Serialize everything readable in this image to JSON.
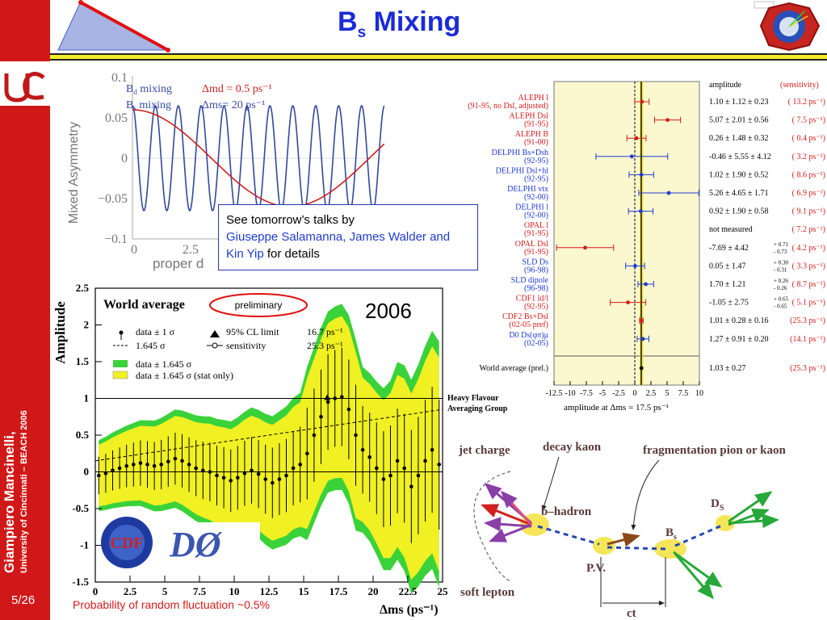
{
  "slide": {
    "title_main": "B",
    "title_sub": "s",
    "title_rest": " Mixing",
    "page_number": "5/26",
    "author": "Giampiero Mancinelli,",
    "affiliation": "University of Cincinnati – BEACH 2006",
    "colors": {
      "sidebar": "#d01818",
      "title": "#1a2bd6",
      "rule": "#f2ea2a"
    }
  },
  "talks_box": {
    "line1": "See tomorrow’s talks by",
    "names": "Giuseppe Salamanna, James Walder and Kin Yip",
    "tail": " for details"
  },
  "footnote": "Probability of random fluctuation ~0.5%",
  "logos": {
    "left": "CDF",
    "right": "DØ"
  },
  "chart_data": [
    {
      "type": "line",
      "ylabel": "Mixed Asymmetry",
      "xlabel": "proper d",
      "x_ticks": [
        "0",
        "2.5"
      ],
      "y_ticks": [
        "0.1",
        "0.05",
        "0",
        "−0.05",
        "−0.1"
      ],
      "ylim": [
        -0.1,
        0.1
      ],
      "series": [
        {
          "name": "Bd mixing",
          "param": "Δmd = 0.5 ps⁻¹",
          "color": "#d02020",
          "freq": 0.5,
          "amp": 0.06
        },
        {
          "name": "Bs mixing",
          "param": "Δms= 20 ps⁻¹",
          "color": "#33489c",
          "freq": 20,
          "amp": 0.065
        }
      ]
    },
    {
      "type": "scatter",
      "title": "World average",
      "badge": "preliminary",
      "year": "2006",
      "ylabel": "Amplitude",
      "xlabel": "Δms (ps⁻¹)",
      "xlim": [
        0,
        25
      ],
      "ylim": [
        -1.5,
        2.5
      ],
      "x_ticks": [
        "0",
        "2.5",
        "5",
        "7.5",
        "10",
        "12.5",
        "15",
        "17.5",
        "20",
        "22.5",
        "25"
      ],
      "y_ticks": [
        "2.5",
        "2",
        "1.5",
        "1",
        "0.5",
        "0",
        "-0.5",
        "-1",
        "-1.5"
      ],
      "legend": [
        "data ± 1 σ",
        "1.645 σ",
        "data ± 1.645 σ",
        "data ± 1.645 σ (stat only)",
        "95% CL limit",
        "16.7 ps⁻¹",
        "sensitivity",
        "25.3 ps⁻¹"
      ],
      "credit": [
        "Heavy Flavour",
        "Averaging Group"
      ],
      "points": [
        [
          0.25,
          -0.05
        ],
        [
          0.75,
          -0.02
        ],
        [
          1.25,
          0.02
        ],
        [
          1.75,
          0.05
        ],
        [
          2.25,
          0.08
        ],
        [
          2.75,
          0.1
        ],
        [
          3.25,
          0.12
        ],
        [
          3.75,
          0.1
        ],
        [
          4.25,
          0.08
        ],
        [
          4.75,
          0.1
        ],
        [
          5.25,
          0.14
        ],
        [
          5.75,
          0.18
        ],
        [
          6.25,
          0.15
        ],
        [
          6.75,
          0.1
        ],
        [
          7.25,
          0.05
        ],
        [
          7.75,
          0.02
        ],
        [
          8.25,
          0.0
        ],
        [
          8.75,
          -0.05
        ],
        [
          9.25,
          -0.08
        ],
        [
          9.75,
          -0.12
        ],
        [
          10.25,
          -0.08
        ],
        [
          10.75,
          -0.02
        ],
        [
          11.25,
          0.02
        ],
        [
          11.75,
          -0.03
        ],
        [
          12.25,
          -0.1
        ],
        [
          12.75,
          -0.15
        ],
        [
          13.25,
          -0.1
        ],
        [
          13.75,
          -0.05
        ],
        [
          14.25,
          0.05
        ],
        [
          14.75,
          0.1
        ],
        [
          15.25,
          0.25
        ],
        [
          15.75,
          0.5
        ],
        [
          16.25,
          0.75
        ],
        [
          16.75,
          0.95
        ],
        [
          17.25,
          1.0
        ],
        [
          17.75,
          1.02
        ],
        [
          18.25,
          0.85
        ],
        [
          18.75,
          0.5
        ],
        [
          19.25,
          0.3
        ],
        [
          19.75,
          0.2
        ],
        [
          20.25,
          0.05
        ],
        [
          20.75,
          -0.1
        ],
        [
          21.25,
          -0.05
        ],
        [
          21.75,
          0.15
        ],
        [
          22.25,
          0.05
        ],
        [
          22.75,
          -0.2
        ],
        [
          23.25,
          -0.05
        ],
        [
          23.75,
          0.15
        ],
        [
          24.25,
          0.3
        ],
        [
          24.75,
          0.1
        ]
      ]
    },
    {
      "type": "scatter",
      "xlabel": "amplitude at Δms = 17.5 ps⁻¹",
      "xlim": [
        -12.5,
        10
      ],
      "x_ticks": [
        "-12.5",
        "-10",
        "-7.5",
        "-5",
        "-2.5",
        "0",
        "2.5",
        "5",
        "7.5",
        "10"
      ],
      "header_amp": "amplitude",
      "header_sens": "(sensitivity)",
      "entries": [
        {
          "l1": "ALEPH l",
          "l2": "(91-95, no Dsl, adjusted)",
          "val": "1.10 ± 1.12 ± 0.23",
          "sens": "( 13.2 ps⁻¹)",
          "color": "#d51b1b",
          "a": 1.1,
          "e": 1.12
        },
        {
          "l1": "ALEPH Dsl",
          "l2": "(91-95)",
          "val": "5.07 ± 2.01 ± 0.56",
          "sens": "( 7.5 ps⁻¹)",
          "color": "#d51b1b",
          "a": 5.07,
          "e": 2.01
        },
        {
          "l1": "ALEPH B",
          "l2": "(91-00)",
          "val": "0.26 ± 1.48 ± 0.32",
          "sens": "( 0.4 ps⁻¹)",
          "color": "#d51b1b",
          "a": 0.26,
          "e": 1.48
        },
        {
          "l1": "DELPHI Bs+Dsh",
          "l2": "(92-95)",
          "val": "-0.46 ± 5.55 ± 4.12",
          "sens": "( 3.2 ps⁻¹)",
          "color": "#1f3bd2",
          "a": -0.46,
          "e": 5.55
        },
        {
          "l1": "DELPHI Dsl+hl",
          "l2": "(92-95)",
          "val": "1.02 ± 1.90 ± 0.52",
          "sens": "( 8.6 ps⁻¹)",
          "color": "#1f3bd2",
          "a": 1.02,
          "e": 1.9
        },
        {
          "l1": "DELPHI vtx",
          "l2": "(92-00)",
          "val": "5.26 ± 4.65 ± 1.71",
          "sens": "( 6.9 ps⁻¹)",
          "color": "#1f3bd2",
          "a": 5.26,
          "e": 4.65
        },
        {
          "l1": "DELPHI l",
          "l2": "(92-00)",
          "val": "0.92 ± 1.90 ± 0.58",
          "sens": "( 9.1 ps⁻¹)",
          "color": "#1f3bd2",
          "a": 0.92,
          "e": 1.9
        },
        {
          "l1": "OPAL l",
          "l2": "(91-95)",
          "val": "not measured",
          "sens": "( 7.2 ps⁻¹)",
          "color": "#d51b1b",
          "a": null,
          "e": null
        },
        {
          "l1": "OPAL Dsl",
          "l2": "(91-95)",
          "val": "-7.69 ± 4.42",
          "up": "+ 0.71",
          "dn": "- 0.73",
          "sens": "( 4.2 ps⁻¹)",
          "color": "#d51b1b",
          "a": -7.69,
          "e": 4.42
        },
        {
          "l1": "SLD Ds",
          "l2": "(96-98)",
          "val": "0.05 ± 1.47",
          "up": "+ 0.30",
          "dn": "- 0.31",
          "sens": "( 3.3 ps⁻¹)",
          "color": "#1f3bd2",
          "a": 0.05,
          "e": 1.47
        },
        {
          "l1": "SLD dipole",
          "l2": "(96-98)",
          "val": "1.70 ± 1.21",
          "up": "+ 0.26",
          "dn": "- 0.26",
          "sens": "( 8.7 ps⁻¹)",
          "color": "#1f3bd2",
          "a": 1.7,
          "e": 1.21
        },
        {
          "l1": "CDF1 ld/l",
          "l2": "(92-95)",
          "val": "-1.05 ± 2.75",
          "up": "+ 0.65",
          "dn": "- 0.65",
          "sens": "( 5.1 ps⁻¹)",
          "color": "#d51b1b",
          "a": -1.05,
          "e": 2.75
        },
        {
          "l1": "CDF2 Bs+Dsl",
          "l2": "(02-05 pref)",
          "val": "1.01 ± 0.28 ± 0.16",
          "sens": "(25.3 ps⁻¹)",
          "color": "#d51b1b",
          "a": 1.01,
          "e": 0.28
        },
        {
          "l1": "D0 Ds(φπ)μ",
          "l2": "(02-05)",
          "val": "1.27 ± 0.91 ± 0.20",
          "sens": "(14.1 ps⁻¹)",
          "color": "#1f3bd2",
          "a": 1.27,
          "e": 0.91
        }
      ],
      "world": {
        "label": "World average (prel.)",
        "val": "1.03 ± 0.27",
        "sens": "(25.3 ps⁻¹)",
        "a": 1.03,
        "e": 0.27
      }
    }
  ],
  "diagram": {
    "labels": {
      "jet_charge": "jet charge",
      "decay_kaon": "decay kaon",
      "frag": "fragmentation pion or kaon",
      "b_hadron": "b–hadron",
      "ds": "D",
      "ds_sub": "S",
      "bs": "B",
      "bs_sub": "s",
      "pv": "P.V.",
      "soft_lepton": "soft lepton",
      "ct": "ct"
    }
  }
}
